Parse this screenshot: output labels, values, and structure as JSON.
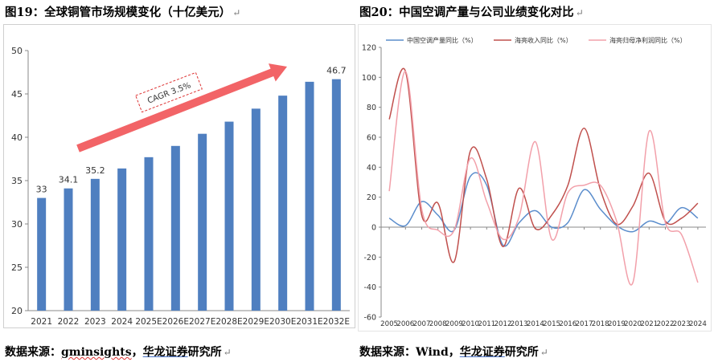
{
  "left": {
    "title": "图19：全球铜管市场规模变化（十亿美元）",
    "source_prefix": "数据来源：",
    "source_name": "gminsights",
    "source_sep": "，",
    "source_org": "华龙证券",
    "source_suffix": "研究所",
    "para_mark": "↵"
  },
  "right": {
    "title": "图20：中国空调产量与公司业绩变化对比",
    "source_prefix": "数据来源：",
    "source_name": "Wind",
    "source_sep": "，",
    "source_org": "华龙证券",
    "source_suffix": "研究所",
    "para_mark": "↵"
  },
  "chart_data": [
    {
      "type": "bar",
      "categories": [
        "2021",
        "2022",
        "2023",
        "2024",
        "2025E",
        "2026E",
        "2027E",
        "2028E",
        "2029E",
        "2030E",
        "2031E",
        "2032E"
      ],
      "values": [
        33,
        34.1,
        35.2,
        36.4,
        37.7,
        39.0,
        40.4,
        41.8,
        43.3,
        44.8,
        46.4,
        46.7
      ],
      "data_labels": {
        "0": "33",
        "1": "34.1",
        "2": "35.2",
        "11": "46.7"
      },
      "ylim": [
        20,
        50
      ],
      "yticks": [
        20,
        25,
        30,
        35,
        40,
        45,
        50
      ],
      "annotation": "CAGR 3.5%",
      "bar_color": "#4f7fc0",
      "arrow_color": "#f26467",
      "grid": false
    },
    {
      "type": "line",
      "x": [
        "2005",
        "2006",
        "2007",
        "2008",
        "2009",
        "2010",
        "2011",
        "2012",
        "2013",
        "2014",
        "2015",
        "2016",
        "2017",
        "2018",
        "2019",
        "2020",
        "2021",
        "2022",
        "2023",
        "2024"
      ],
      "ylim": [
        -60,
        120
      ],
      "yticks": [
        -60,
        -40,
        -20,
        0,
        20,
        40,
        60,
        80,
        100,
        120
      ],
      "legend_position": "top",
      "grid": false,
      "series": [
        {
          "name": "中国空调产量同比（%）",
          "color": "#5b8dcc",
          "values": [
            6,
            1,
            17,
            8,
            -2,
            34,
            28,
            -12,
            3,
            11,
            0,
            3,
            25,
            12,
            1,
            -3,
            4,
            2,
            13,
            6
          ]
        },
        {
          "name": "海亮收入同比（%）",
          "color": "#c0504d",
          "values": [
            72,
            104,
            8,
            16,
            -23,
            51,
            32,
            -13,
            26,
            -1,
            8,
            28,
            66,
            25,
            2,
            14,
            36,
            4,
            6,
            16
          ]
        },
        {
          "name": "海亮归母净利润同比（%）",
          "color": "#f2a0aa",
          "values": [
            24,
            104,
            12,
            -2,
            -2,
            46,
            17,
            -8,
            7,
            57,
            -8,
            23,
            28,
            28,
            4,
            -37,
            64,
            3,
            -5,
            -37
          ]
        }
      ]
    }
  ]
}
